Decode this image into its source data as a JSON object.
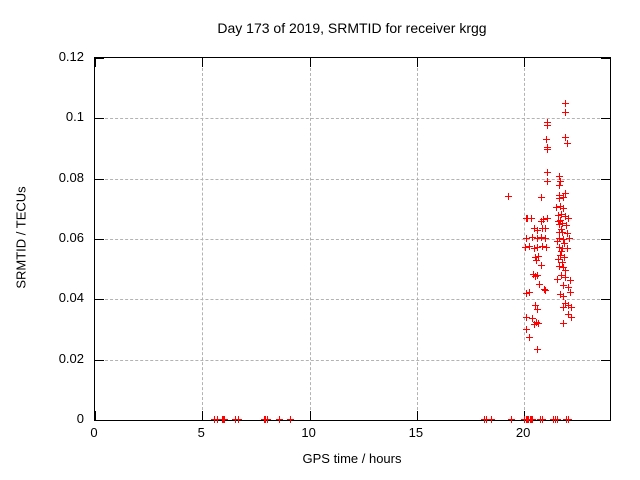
{
  "chart_data": {
    "type": "scatter",
    "title": "Day 173 of 2019, SRMTID for receiver krgg",
    "xlabel": "GPS time / hours",
    "ylabel": "SRMTID / TECUs",
    "xlim": [
      0,
      24
    ],
    "ylim": [
      0,
      0.12
    ],
    "x_ticks": [
      0,
      5,
      10,
      15,
      20
    ],
    "x_tick_labels": [
      "0",
      "5",
      "10",
      "15",
      "20"
    ],
    "y_ticks": [
      0,
      0.02,
      0.04,
      0.06,
      0.08,
      0.1,
      0.12
    ],
    "y_tick_labels": [
      "0",
      "0.02",
      "0.04",
      "0.06",
      "0.08",
      "0.1",
      "0.12"
    ],
    "grid": true,
    "legend": false,
    "marker": "plus",
    "marker_color": "#ff0000",
    "border_color": "#000000",
    "grid_color": "#b3b3b3",
    "series": [
      {
        "name": "SRMTID",
        "points": [
          [
            5.61,
            0
          ],
          [
            5.73,
            0
          ],
          [
            5.95,
            0
          ],
          [
            6.02,
            0
          ],
          [
            6.08,
            0
          ],
          [
            6.57,
            0
          ],
          [
            6.72,
            0
          ],
          [
            7.9,
            0
          ],
          [
            7.98,
            0
          ],
          [
            8.06,
            0
          ],
          [
            8.62,
            0
          ],
          [
            9.15,
            0
          ],
          [
            18.18,
            0
          ],
          [
            18.28,
            0
          ],
          [
            18.5,
            0
          ],
          [
            19.42,
            0
          ],
          [
            20.05,
            0
          ],
          [
            20.12,
            0
          ],
          [
            20.18,
            0
          ],
          [
            20.24,
            0
          ],
          [
            20.3,
            0
          ],
          [
            20.36,
            0
          ],
          [
            20.42,
            0
          ],
          [
            20.78,
            0
          ],
          [
            20.88,
            0
          ],
          [
            21.38,
            0
          ],
          [
            21.48,
            0
          ],
          [
            21.56,
            0
          ],
          [
            22.0,
            0
          ],
          [
            22.08,
            0
          ],
          [
            19.29,
            0.0739
          ],
          [
            20.08,
            0.0571
          ],
          [
            20.15,
            0.0667
          ],
          [
            20.15,
            0.0601
          ],
          [
            20.15,
            0.0417
          ],
          [
            20.15,
            0.0339
          ],
          [
            20.15,
            0.0297
          ],
          [
            20.2,
            0.0665
          ],
          [
            20.27,
            0.0575
          ],
          [
            20.27,
            0.0422
          ],
          [
            20.27,
            0.0271
          ],
          [
            20.35,
            0.0667
          ],
          [
            20.4,
            0.0604
          ],
          [
            20.43,
            0.0334
          ],
          [
            20.46,
            0.048
          ],
          [
            20.51,
            0.0632
          ],
          [
            20.51,
            0.0568
          ],
          [
            20.51,
            0.0315
          ],
          [
            20.55,
            0.0538
          ],
          [
            20.55,
            0.0475
          ],
          [
            20.55,
            0.0378
          ],
          [
            20.62,
            0.0527
          ],
          [
            20.62,
            0.0323
          ],
          [
            20.66,
            0.0627
          ],
          [
            20.66,
            0.0599
          ],
          [
            20.66,
            0.0571
          ],
          [
            20.66,
            0.0477
          ],
          [
            20.66,
            0.0364
          ],
          [
            20.66,
            0.0231
          ],
          [
            20.71,
            0.0541
          ],
          [
            20.71,
            0.0317
          ],
          [
            20.74,
            0.0447
          ],
          [
            20.82,
            0.0736
          ],
          [
            20.82,
            0.0656
          ],
          [
            20.82,
            0.0604
          ],
          [
            20.82,
            0.0511
          ],
          [
            20.87,
            0.0632
          ],
          [
            20.9,
            0.0575
          ],
          [
            20.93,
            0.0663
          ],
          [
            20.98,
            0.0431
          ],
          [
            21.02,
            0.0634
          ],
          [
            21.02,
            0.0601
          ],
          [
            21.02,
            0.0428
          ],
          [
            21.05,
            0.0927
          ],
          [
            21.08,
            0.0571
          ],
          [
            21.09,
            0.0986
          ],
          [
            21.09,
            0.0903
          ],
          [
            21.09,
            0.082
          ],
          [
            21.11,
            0.0975
          ],
          [
            21.13,
            0.0894
          ],
          [
            21.13,
            0.079
          ],
          [
            21.13,
            0.0665
          ],
          [
            21.55,
            0.0704
          ],
          [
            21.58,
            0.059
          ],
          [
            21.58,
            0.0465
          ],
          [
            21.6,
            0.0676
          ],
          [
            21.6,
            0.0655
          ],
          [
            21.62,
            0.0532
          ],
          [
            21.65,
            0.0776
          ],
          [
            21.65,
            0.0645
          ],
          [
            21.65,
            0.0619
          ],
          [
            21.65,
            0.0571
          ],
          [
            21.67,
            0.0806
          ],
          [
            21.67,
            0.0743
          ],
          [
            21.67,
            0.0734
          ],
          [
            21.67,
            0.0599
          ],
          [
            21.67,
            0.0508
          ],
          [
            21.71,
            0.0707
          ],
          [
            21.71,
            0.0544
          ],
          [
            21.71,
            0.0413
          ],
          [
            21.72,
            0.079
          ],
          [
            21.72,
            0.066
          ],
          [
            21.75,
            0.0678
          ],
          [
            21.75,
            0.0477
          ],
          [
            21.76,
            0.0558
          ],
          [
            21.78,
            0.063
          ],
          [
            21.8,
            0.0649
          ],
          [
            21.8,
            0.052
          ],
          [
            21.83,
            0.0621
          ],
          [
            21.83,
            0.0568
          ],
          [
            21.86,
            0.0737
          ],
          [
            21.86,
            0.07
          ],
          [
            21.86,
            0.0597
          ],
          [
            21.86,
            0.0505
          ],
          [
            21.86,
            0.0444
          ],
          [
            21.86,
            0.0408
          ],
          [
            21.86,
            0.0372
          ],
          [
            21.86,
            0.0319
          ],
          [
            21.9,
            0.0585
          ],
          [
            21.91,
            0.0538
          ],
          [
            21.94,
            0.0495
          ],
          [
            21.96,
            0.1048
          ],
          [
            21.96,
            0.1019
          ],
          [
            21.96,
            0.0936
          ],
          [
            21.96,
            0.0748
          ],
          [
            21.96,
            0.0674
          ],
          [
            21.96,
            0.0472
          ],
          [
            21.96,
            0.0384
          ],
          [
            21.99,
            0.0643
          ],
          [
            22.02,
            0.0914
          ],
          [
            22.02,
            0.0616
          ],
          [
            22.02,
            0.0566
          ],
          [
            22.07,
            0.0439
          ],
          [
            22.07,
            0.0378
          ],
          [
            22.07,
            0.0348
          ],
          [
            22.11,
            0.0667
          ],
          [
            22.14,
            0.0601
          ],
          [
            22.2,
            0.0461
          ],
          [
            22.2,
            0.0422
          ],
          [
            22.22,
            0.0372
          ],
          [
            22.22,
            0.0338
          ]
        ]
      }
    ]
  }
}
